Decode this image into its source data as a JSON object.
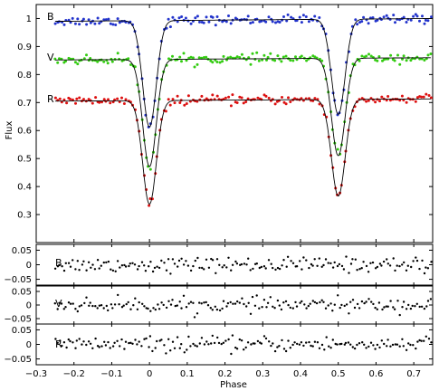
{
  "chart_data": [
    {
      "type": "scatter",
      "xlabel": "",
      "ylabel": "Flux",
      "xlim": [
        -0.3,
        0.75
      ],
      "ylim": [
        0.2,
        1.05
      ],
      "yticks": [
        "0.3",
        "0.4",
        "0.5",
        "0.6",
        "0.7",
        "0.8",
        "0.9",
        "1"
      ],
      "grid": false,
      "series": [
        {
          "name": "B",
          "color": "#2233cc",
          "model": {
            "base": 0.99,
            "slope": 0.01,
            "depth1": 0.38,
            "depth2": 0.34,
            "width": 0.018
          }
        },
        {
          "name": "V",
          "color": "#33cc11",
          "model": {
            "base": 0.852,
            "slope": 0.008,
            "depth1": 0.383,
            "depth2": 0.348,
            "width": 0.018
          }
        },
        {
          "name": "R",
          "color": "#dd1111",
          "model": {
            "base": 0.705,
            "slope": 0.008,
            "depth1": 0.37,
            "depth2": 0.345,
            "width": 0.018
          }
        }
      ],
      "points": {
        "x_start": -0.25,
        "x_end": 0.745,
        "count": 170,
        "scatter": 0.008
      }
    },
    {
      "type": "scatter",
      "ylabel": "",
      "ylim": [
        -0.07,
        0.07
      ],
      "yticks": [
        "0.05",
        "0",
        "−0.05"
      ],
      "series_label": "B",
      "color": "#000000"
    },
    {
      "type": "scatter",
      "ylabel": "",
      "ylim": [
        -0.07,
        0.07
      ],
      "yticks": [
        "0.05",
        "0",
        "−0.05"
      ],
      "series_label": "V",
      "color": "#000000"
    },
    {
      "type": "scatter",
      "xlabel": "Phase",
      "ylim": [
        -0.07,
        0.07
      ],
      "yticks": [
        "0.05",
        "0",
        "−0.05"
      ],
      "series_label": "R",
      "color": "#000000",
      "xticks": [
        "−0.3",
        "−0.2",
        "−0.1",
        "0",
        "0.1",
        "0.2",
        "0.3",
        "0.4",
        "0.5",
        "0.6",
        "0.7"
      ]
    }
  ]
}
